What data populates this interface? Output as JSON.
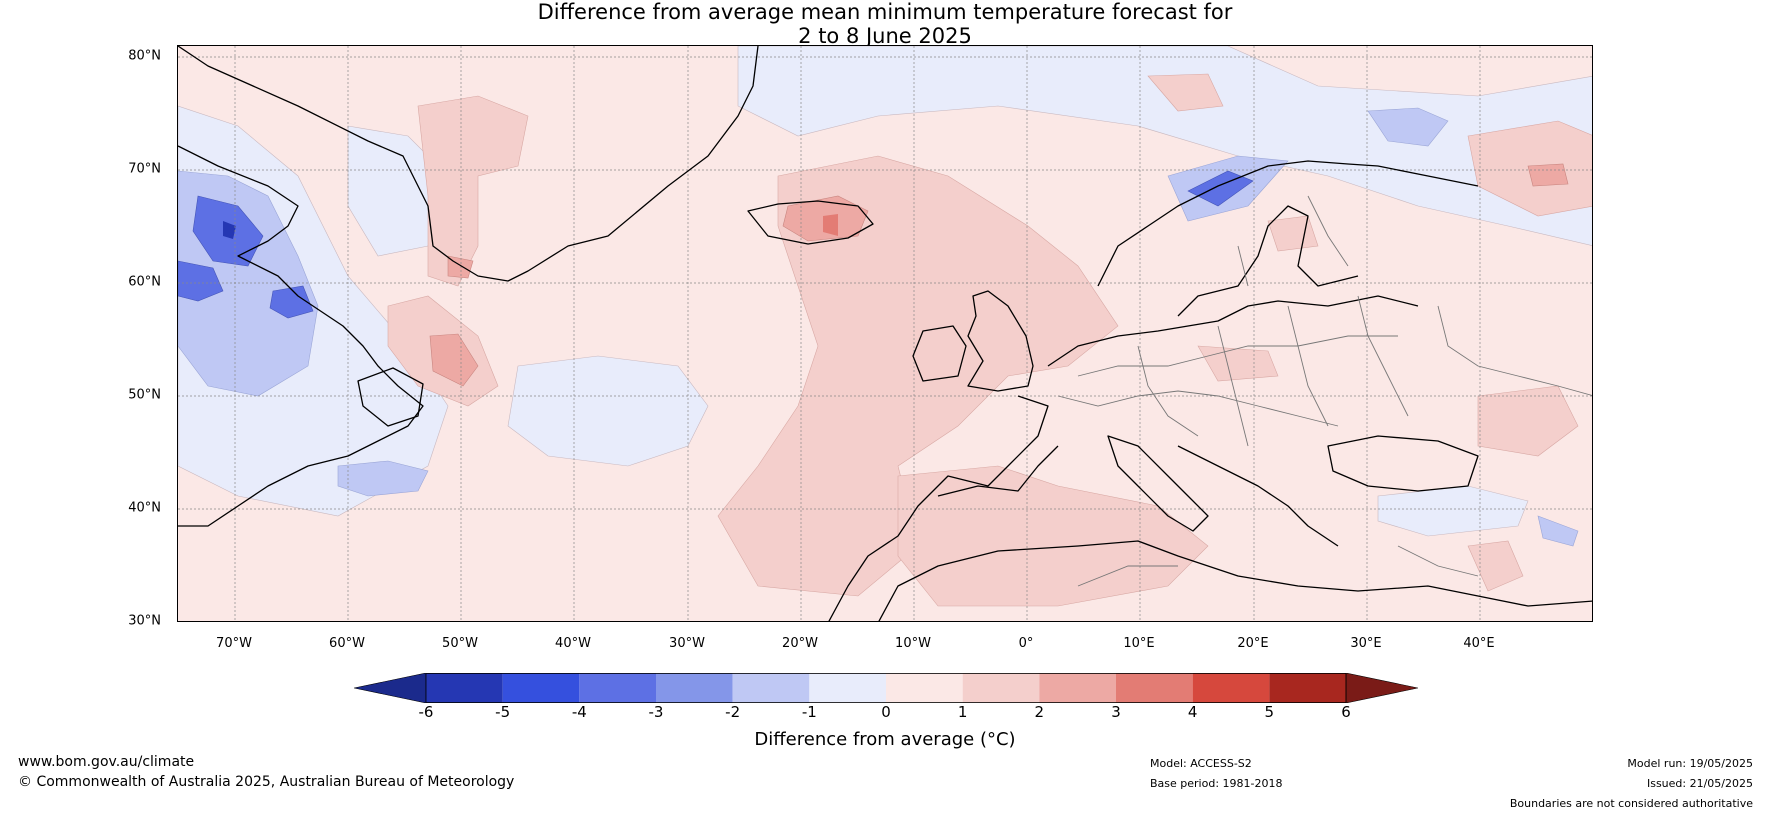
{
  "title": {
    "line1": "Difference from average mean minimum temperature forecast for",
    "line2": "2 to 8 June 2025"
  },
  "map": {
    "latitude_labels": [
      "80°N",
      "70°N",
      "60°N",
      "50°N",
      "40°N",
      "30°N"
    ],
    "longitude_labels": [
      "70°W",
      "60°W",
      "50°W",
      "40°W",
      "30°W",
      "20°W",
      "10°W",
      "0°",
      "10°E",
      "20°E",
      "30°E",
      "40°E"
    ]
  },
  "colorbar": {
    "ticks": [
      "-6",
      "-5",
      "-4",
      "-3",
      "-2",
      "-1",
      "0",
      "1",
      "2",
      "3",
      "4",
      "5",
      "6"
    ],
    "colors": [
      "#1b2a8c",
      "#2537b3",
      "#3550de",
      "#5d70e4",
      "#8496e9",
      "#bfc8f4",
      "#e8ecfb",
      "#fbe8e6",
      "#f4cfcc",
      "#eda9a4",
      "#e37c74",
      "#d6483d",
      "#a8271f",
      "#7a1b17"
    ],
    "label": "Difference from average (°C)"
  },
  "footer": {
    "website": "www.bom.gov.au/climate",
    "copyright": "© Commonwealth of Australia 2025, Australian Bureau of Meteorology",
    "model": "Model: ACCESS-S2",
    "base_period": "Base period: 1981-2018",
    "model_run": "Model run: 19/05/2025",
    "issued": "Issued: 21/05/2025",
    "disclaimer": "Boundaries are not considered authoritative"
  }
}
